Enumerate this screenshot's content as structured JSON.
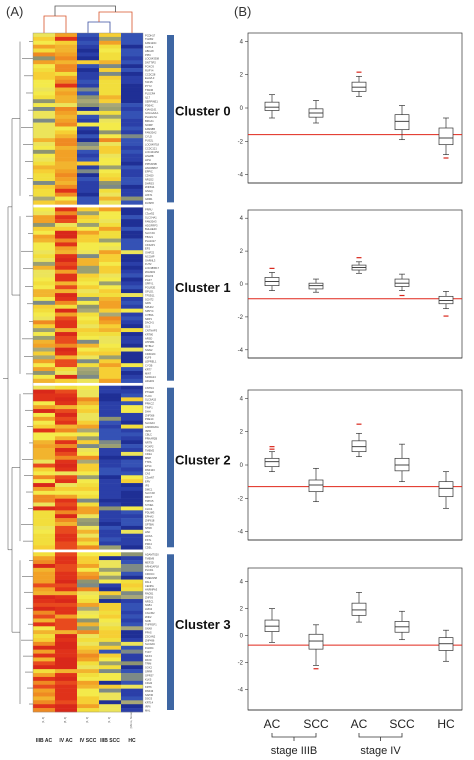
{
  "figure": {
    "panel_a_label": "(A)",
    "panel_b_label": "(B)"
  },
  "heatmap": {
    "columns": [
      "IIIB AC",
      "IV AC",
      "IV SCC",
      "IIIB SCC",
      "HC"
    ],
    "column_counts": [
      "[3, 4]",
      "[8, 4]",
      "[4, 3]",
      "[3, 3]",
      "[Mono, Nose]"
    ],
    "clusters": [
      {
        "label": "Cluster 0",
        "rows": 44,
        "genes": [
          "PCDH17",
          "TGFB2",
          "FAM120C",
          "CUTL2",
          "ABCA8",
          "PPIC",
          "LOC643308",
          "DNTTIP2",
          "FOXO3",
          "RUFY4",
          "CCDC28",
          "ELAVL3",
          "TAF15",
          "PYY2",
          "TSN36",
          "PLSCR4",
          "IL17",
          "SERPINE1",
          "PDE4C",
          "KIAA1161",
          "GOLGA2L1",
          "PLA2G7H",
          "BRCA1",
          "NOMP",
          "FAM98B",
          "FAM20A2",
          "CYLD",
          "PUS2L",
          "LOC649718",
          "CCDC121",
          "LOC441252",
          "LIN28B",
          "LIPH",
          "PPP2R3B",
          "HNC08847",
          "EPPIC",
          "CDH20",
          "NR1D2",
          "DHRS3",
          "ZNF814",
          "GNAQ",
          "HIST1",
          "GRM1",
          "DUSP8"
        ]
      },
      {
        "label": "Cluster 1",
        "rows": 45,
        "genes": [
          "PRRU",
          "C3orf52",
          "SLCO4A1",
          "FAM20A3",
          "HDGFRP3",
          "BHLHE40",
          "SLC7A9",
          "TBX21",
          "PLA1017",
          "CKS2P1",
          "EFS",
          "OIHF22",
          "NCCMP",
          "GARNL3",
          "FUT2",
          "LOC389517",
          "ZFAND3",
          "ZFHX3",
          "PGF7",
          "SPRY1",
          "POLR2E",
          "GPLD1",
          "TP53I11",
          "SCNT2",
          "GRN",
          "SPHK2",
          "SPRY4",
          "CYB5A",
          "NRP1",
          "DACH1",
          "GLS",
          "CNTNAP3",
          "KRT80",
          "ARSD",
          "ATP1B1",
          "MYBL2",
          "SNAI2",
          "CDKN2C",
          "KLF9",
          "LEPREL1",
          "CYGB",
          "KRT7",
          "MIAT",
          "S100A14",
          "HDHD3"
        ]
      },
      {
        "label": "Cluster 2",
        "rows": 42,
        "genes": [
          "CNTN4",
          "PTGER",
          "TLOC",
          "SLC6A15",
          "PRKCZ",
          "TIMP1",
          "DHH",
          "ZNF366",
          "PDE1C",
          "SLC9A3",
          "ANKRD20A",
          "ISPD",
          "CBLC",
          "PRKAR2B",
          "NRTN",
          "FOXP2",
          "TMEM2",
          "CD2A",
          "MMP",
          "TTPA",
          "ETV4",
          "RNF103",
          "CA3",
          "C3orf67",
          "ERV",
          "IPS",
          "DMC1",
          "SLC7A8",
          "RRCT",
          "TRPC5",
          "SYNE1",
          "CLIC4",
          "PDLIM3",
          "EPHA2",
          "ZNF618",
          "SPTBN",
          "NTRK",
          "HSF",
          "HOXA",
          "FSTL",
          "PDK4",
          "CD5L"
        ]
      },
      {
        "label": "Cluster 3",
        "rows": 41,
        "genes": [
          "ADAMTS20",
          "TMEM9",
          "MEF2D",
          "ARHGAP18",
          "PLCD1",
          "CROCC",
          "TMEM158",
          "PAL2",
          "CENPA",
          "HNRNPA3",
          "RAD51",
          "ZNF93",
          "NR3C1",
          "NAB1",
          "LMO4",
          "CXorf62",
          "ZNF2",
          "NOB",
          "TNFRSF1",
          "SNX8",
          "PFAS",
          "ZSCAN2",
          "ZNF496",
          "SLC9A9",
          "FGFR4",
          "TCF7",
          "NKX3",
          "PAX9",
          "TRIM",
          "SOX2",
          "SPRR",
          "GPR37",
          "KLK5",
          "CDH3",
          "KRT6",
          "RNF43",
          "SAP30",
          "DSG3",
          "KRT14",
          "IRF6",
          "MAL"
        ]
      }
    ]
  },
  "chart_data": [
    {
      "type": "box",
      "panel": "Cluster 0",
      "categories": [
        "AC (stage IIIB)",
        "SCC (stage IIIB)",
        "AC (stage IV)",
        "SCC (stage IV)",
        "HC"
      ],
      "ylim": [
        -4.5,
        4.5
      ],
      "yticks": [
        -4,
        -2,
        0,
        2,
        4
      ],
      "reference_line": -1.6,
      "boxes": [
        {
          "min": -0.6,
          "q1": -0.15,
          "median": 0.05,
          "q3": 0.35,
          "max": 0.8
        },
        {
          "min": -0.9,
          "q1": -0.55,
          "median": -0.3,
          "q3": -0.05,
          "max": 0.45
        },
        {
          "min": 0.7,
          "q1": 1.0,
          "median": 1.25,
          "q3": 1.55,
          "max": 1.9
        },
        {
          "min": -1.9,
          "q1": -1.3,
          "median": -0.8,
          "q3": -0.4,
          "max": 0.15
        },
        {
          "min": -2.8,
          "q1": -2.2,
          "median": -1.8,
          "q3": -1.2,
          "max": -0.6
        }
      ],
      "outliers": [
        {
          "box": 2,
          "y": 2.15
        },
        {
          "box": 4,
          "y": -3.0
        }
      ]
    },
    {
      "type": "box",
      "panel": "Cluster 1",
      "categories": [
        "AC (stage IIIB)",
        "SCC (stage IIIB)",
        "AC (stage IV)",
        "SCC (stage IV)",
        "HC"
      ],
      "ylim": [
        -4.5,
        4.5
      ],
      "yticks": [
        -4,
        -2,
        0,
        2,
        4
      ],
      "reference_line": -0.9,
      "boxes": [
        {
          "min": -0.4,
          "q1": -0.1,
          "median": 0.15,
          "q3": 0.4,
          "max": 0.7
        },
        {
          "min": -0.5,
          "q1": -0.3,
          "median": -0.1,
          "q3": 0.05,
          "max": 0.3
        },
        {
          "min": 0.65,
          "q1": 0.85,
          "median": 1.0,
          "q3": 1.15,
          "max": 1.35
        },
        {
          "min": -0.4,
          "q1": -0.15,
          "median": 0.05,
          "q3": 0.3,
          "max": 0.6
        },
        {
          "min": -1.5,
          "q1": -1.2,
          "median": -1.0,
          "q3": -0.75,
          "max": -0.45
        }
      ],
      "outliers": [
        {
          "box": 0,
          "y": 0.95
        },
        {
          "box": 2,
          "y": 1.6
        },
        {
          "box": 3,
          "y": -0.7
        },
        {
          "box": 4,
          "y": -1.95
        }
      ]
    },
    {
      "type": "box",
      "panel": "Cluster 2",
      "categories": [
        "AC (stage IIIB)",
        "SCC (stage IIIB)",
        "AC (stage IV)",
        "SCC (stage IV)",
        "HC"
      ],
      "ylim": [
        -4.5,
        4.5
      ],
      "yticks": [
        -4,
        -2,
        0,
        2,
        4
      ],
      "reference_line": -1.3,
      "boxes": [
        {
          "min": -0.4,
          "q1": -0.1,
          "median": 0.2,
          "q3": 0.4,
          "max": 0.8
        },
        {
          "min": -2.2,
          "q1": -1.6,
          "median": -1.2,
          "q3": -0.9,
          "max": -0.2
        },
        {
          "min": 0.5,
          "q1": 0.8,
          "median": 1.1,
          "q3": 1.45,
          "max": 1.9
        },
        {
          "min": -1.0,
          "q1": -0.35,
          "median": 0.0,
          "q3": 0.4,
          "max": 1.25
        },
        {
          "min": -2.6,
          "q1": -1.9,
          "median": -1.4,
          "q3": -1.0,
          "max": -0.4
        }
      ],
      "outliers": [
        {
          "box": 0,
          "y": 0.95
        },
        {
          "box": 0,
          "y": 1.1
        },
        {
          "box": 2,
          "y": 2.45
        }
      ]
    },
    {
      "type": "box",
      "panel": "Cluster 3",
      "categories": [
        "AC (stage IIIB)",
        "SCC (stage IIIB)",
        "AC (stage IV)",
        "SCC (stage IV)",
        "HC"
      ],
      "ylim": [
        -5.5,
        5
      ],
      "yticks": [
        -4,
        -2,
        0,
        2,
        4
      ],
      "reference_line": -0.7,
      "boxes": [
        {
          "min": -0.5,
          "q1": 0.3,
          "median": 0.7,
          "q3": 1.15,
          "max": 2.0
        },
        {
          "min": -2.2,
          "q1": -1.0,
          "median": -0.4,
          "q3": 0.1,
          "max": 0.8
        },
        {
          "min": 1.0,
          "q1": 1.5,
          "median": 1.9,
          "q3": 2.4,
          "max": 3.2
        },
        {
          "min": -0.3,
          "q1": 0.25,
          "median": 0.65,
          "q3": 1.05,
          "max": 1.8
        },
        {
          "min": -1.9,
          "q1": -1.1,
          "median": -0.6,
          "q3": -0.15,
          "max": 0.4
        }
      ],
      "outliers": [
        {
          "box": 1,
          "y": -2.45
        }
      ]
    }
  ],
  "x_axis": {
    "categories": [
      "AC",
      "SCC",
      "AC",
      "SCC",
      "HC"
    ],
    "groups": [
      "stage IIIB",
      "stage IV"
    ]
  },
  "colors": {
    "reference_line": "#e0261a",
    "cluster_bar": "#3e66a3",
    "box_stroke": "#333333",
    "outlier": "#d9251a"
  }
}
